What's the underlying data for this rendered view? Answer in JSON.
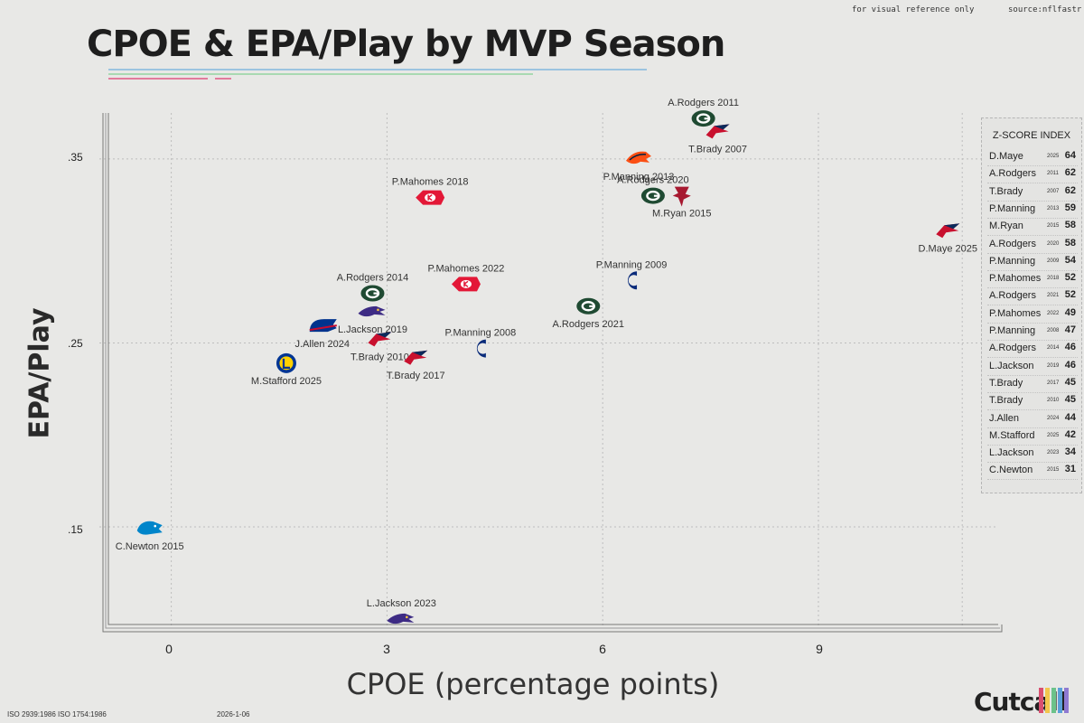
{
  "header": {
    "title": "CPOE & EPA/Play by MVP Season",
    "note": "for visual reference only",
    "source": "source:nflfastr"
  },
  "footer": {
    "standards": "ISO 2939:1986  ISO 1754:1986",
    "date": "2026-1-06",
    "logo": "Cutcall"
  },
  "colors": {
    "background": "#e8e8e6",
    "packers": "#1f4a32",
    "patriots": "#c8102e",
    "broncos": "#fb4f14",
    "falcons": "#a71930",
    "chiefs": "#e31837",
    "colts": "#0a2b7a",
    "ravens": "#3d2b84",
    "bills": "#00338d",
    "rams": "#003594",
    "panthers": "#0085ca"
  },
  "chart_data": {
    "type": "scatter",
    "title": "CPOE & EPA/Play by MVP Season",
    "xlabel": "CPOE (percentage points)",
    "ylabel": "EPA/Play",
    "xticks": [
      "0",
      "3",
      "6",
      "9"
    ],
    "yticks": [
      ".35",
      ".25",
      ".15"
    ],
    "xlim": [
      -1,
      11.5
    ],
    "ylim": [
      0.095,
      0.375
    ],
    "grid": true,
    "points": [
      {
        "label": "A.Rodgers 2011",
        "x": 7.4,
        "y": 0.372,
        "team": "packers",
        "icon": "packers-logo-icon"
      },
      {
        "label": "T.Brady 2007",
        "x": 7.6,
        "y": 0.365,
        "team": "patriots",
        "icon": "patriots-logo-icon"
      },
      {
        "label": "P.Manning 2013",
        "x": 6.5,
        "y": 0.35,
        "team": "broncos",
        "icon": "broncos-logo-icon"
      },
      {
        "label": "A.Rodgers 2020",
        "x": 6.7,
        "y": 0.33,
        "team": "packers",
        "icon": "packers-logo-icon"
      },
      {
        "label": "M.Ryan 2015",
        "x": 7.1,
        "y": 0.33,
        "team": "falcons",
        "icon": "falcons-logo-icon"
      },
      {
        "label": "P.Mahomes 2018",
        "x": 3.6,
        "y": 0.329,
        "team": "chiefs",
        "icon": "chiefs-logo-icon"
      },
      {
        "label": "D.Maye 2025",
        "x": 10.8,
        "y": 0.311,
        "team": "patriots",
        "icon": "patriots-logo-icon"
      },
      {
        "label": "P.Manning 2009",
        "x": 6.4,
        "y": 0.284,
        "team": "colts",
        "icon": "colts-logo-icon"
      },
      {
        "label": "P.Mahomes 2022",
        "x": 4.1,
        "y": 0.282,
        "team": "chiefs",
        "icon": "chiefs-logo-icon"
      },
      {
        "label": "A.Rodgers 2014",
        "x": 2.8,
        "y": 0.277,
        "team": "packers",
        "icon": "packers-logo-icon"
      },
      {
        "label": "A.Rodgers 2021",
        "x": 5.8,
        "y": 0.27,
        "team": "packers",
        "icon": "packers-logo-icon"
      },
      {
        "label": "L.Jackson 2019",
        "x": 2.8,
        "y": 0.267,
        "team": "ravens",
        "icon": "ravens-logo-icon"
      },
      {
        "label": "J.Allen 2024",
        "x": 2.1,
        "y": 0.259,
        "team": "bills",
        "icon": "bills-logo-icon"
      },
      {
        "label": "T.Brady 2010",
        "x": 2.9,
        "y": 0.252,
        "team": "patriots",
        "icon": "patriots-logo-icon"
      },
      {
        "label": "P.Manning 2008",
        "x": 4.3,
        "y": 0.247,
        "team": "colts",
        "icon": "colts-logo-icon"
      },
      {
        "label": "T.Brady 2017",
        "x": 3.4,
        "y": 0.242,
        "team": "patriots",
        "icon": "patriots-logo-icon"
      },
      {
        "label": "M.Stafford 2025",
        "x": 1.6,
        "y": 0.239,
        "team": "rams",
        "icon": "rams-logo-icon"
      },
      {
        "label": "C.Newton 2015",
        "x": -0.3,
        "y": 0.149,
        "team": "panthers",
        "icon": "panthers-logo-icon"
      },
      {
        "label": "L.Jackson 2023",
        "x": 3.2,
        "y": 0.1,
        "team": "ravens",
        "icon": "ravens-logo-icon"
      }
    ]
  },
  "legend": {
    "title": "Z-SCORE INDEX",
    "rows": [
      {
        "name": "D.Maye",
        "year": "2025",
        "value": "64"
      },
      {
        "name": "A.Rodgers",
        "year": "2011",
        "value": "62"
      },
      {
        "name": "T.Brady",
        "year": "2007",
        "value": "62"
      },
      {
        "name": "P.Manning",
        "year": "2013",
        "value": "59"
      },
      {
        "name": "M.Ryan",
        "year": "2015",
        "value": "58"
      },
      {
        "name": "A.Rodgers",
        "year": "2020",
        "value": "58"
      },
      {
        "name": "P.Manning",
        "year": "2009",
        "value": "54"
      },
      {
        "name": "P.Mahomes",
        "year": "2018",
        "value": "52"
      },
      {
        "name": "A.Rodgers",
        "year": "2021",
        "value": "52"
      },
      {
        "name": "P.Mahomes",
        "year": "2022",
        "value": "49"
      },
      {
        "name": "P.Manning",
        "year": "2008",
        "value": "47"
      },
      {
        "name": "A.Rodgers",
        "year": "2014",
        "value": "46"
      },
      {
        "name": "L.Jackson",
        "year": "2019",
        "value": "46"
      },
      {
        "name": "T.Brady",
        "year": "2017",
        "value": "45"
      },
      {
        "name": "T.Brady",
        "year": "2010",
        "value": "45"
      },
      {
        "name": "J.Allen",
        "year": "2024",
        "value": "44"
      },
      {
        "name": "M.Stafford",
        "year": "2025",
        "value": "42"
      },
      {
        "name": "L.Jackson",
        "year": "2023",
        "value": "34"
      },
      {
        "name": "C.Newton",
        "year": "2015",
        "value": "31"
      }
    ]
  }
}
